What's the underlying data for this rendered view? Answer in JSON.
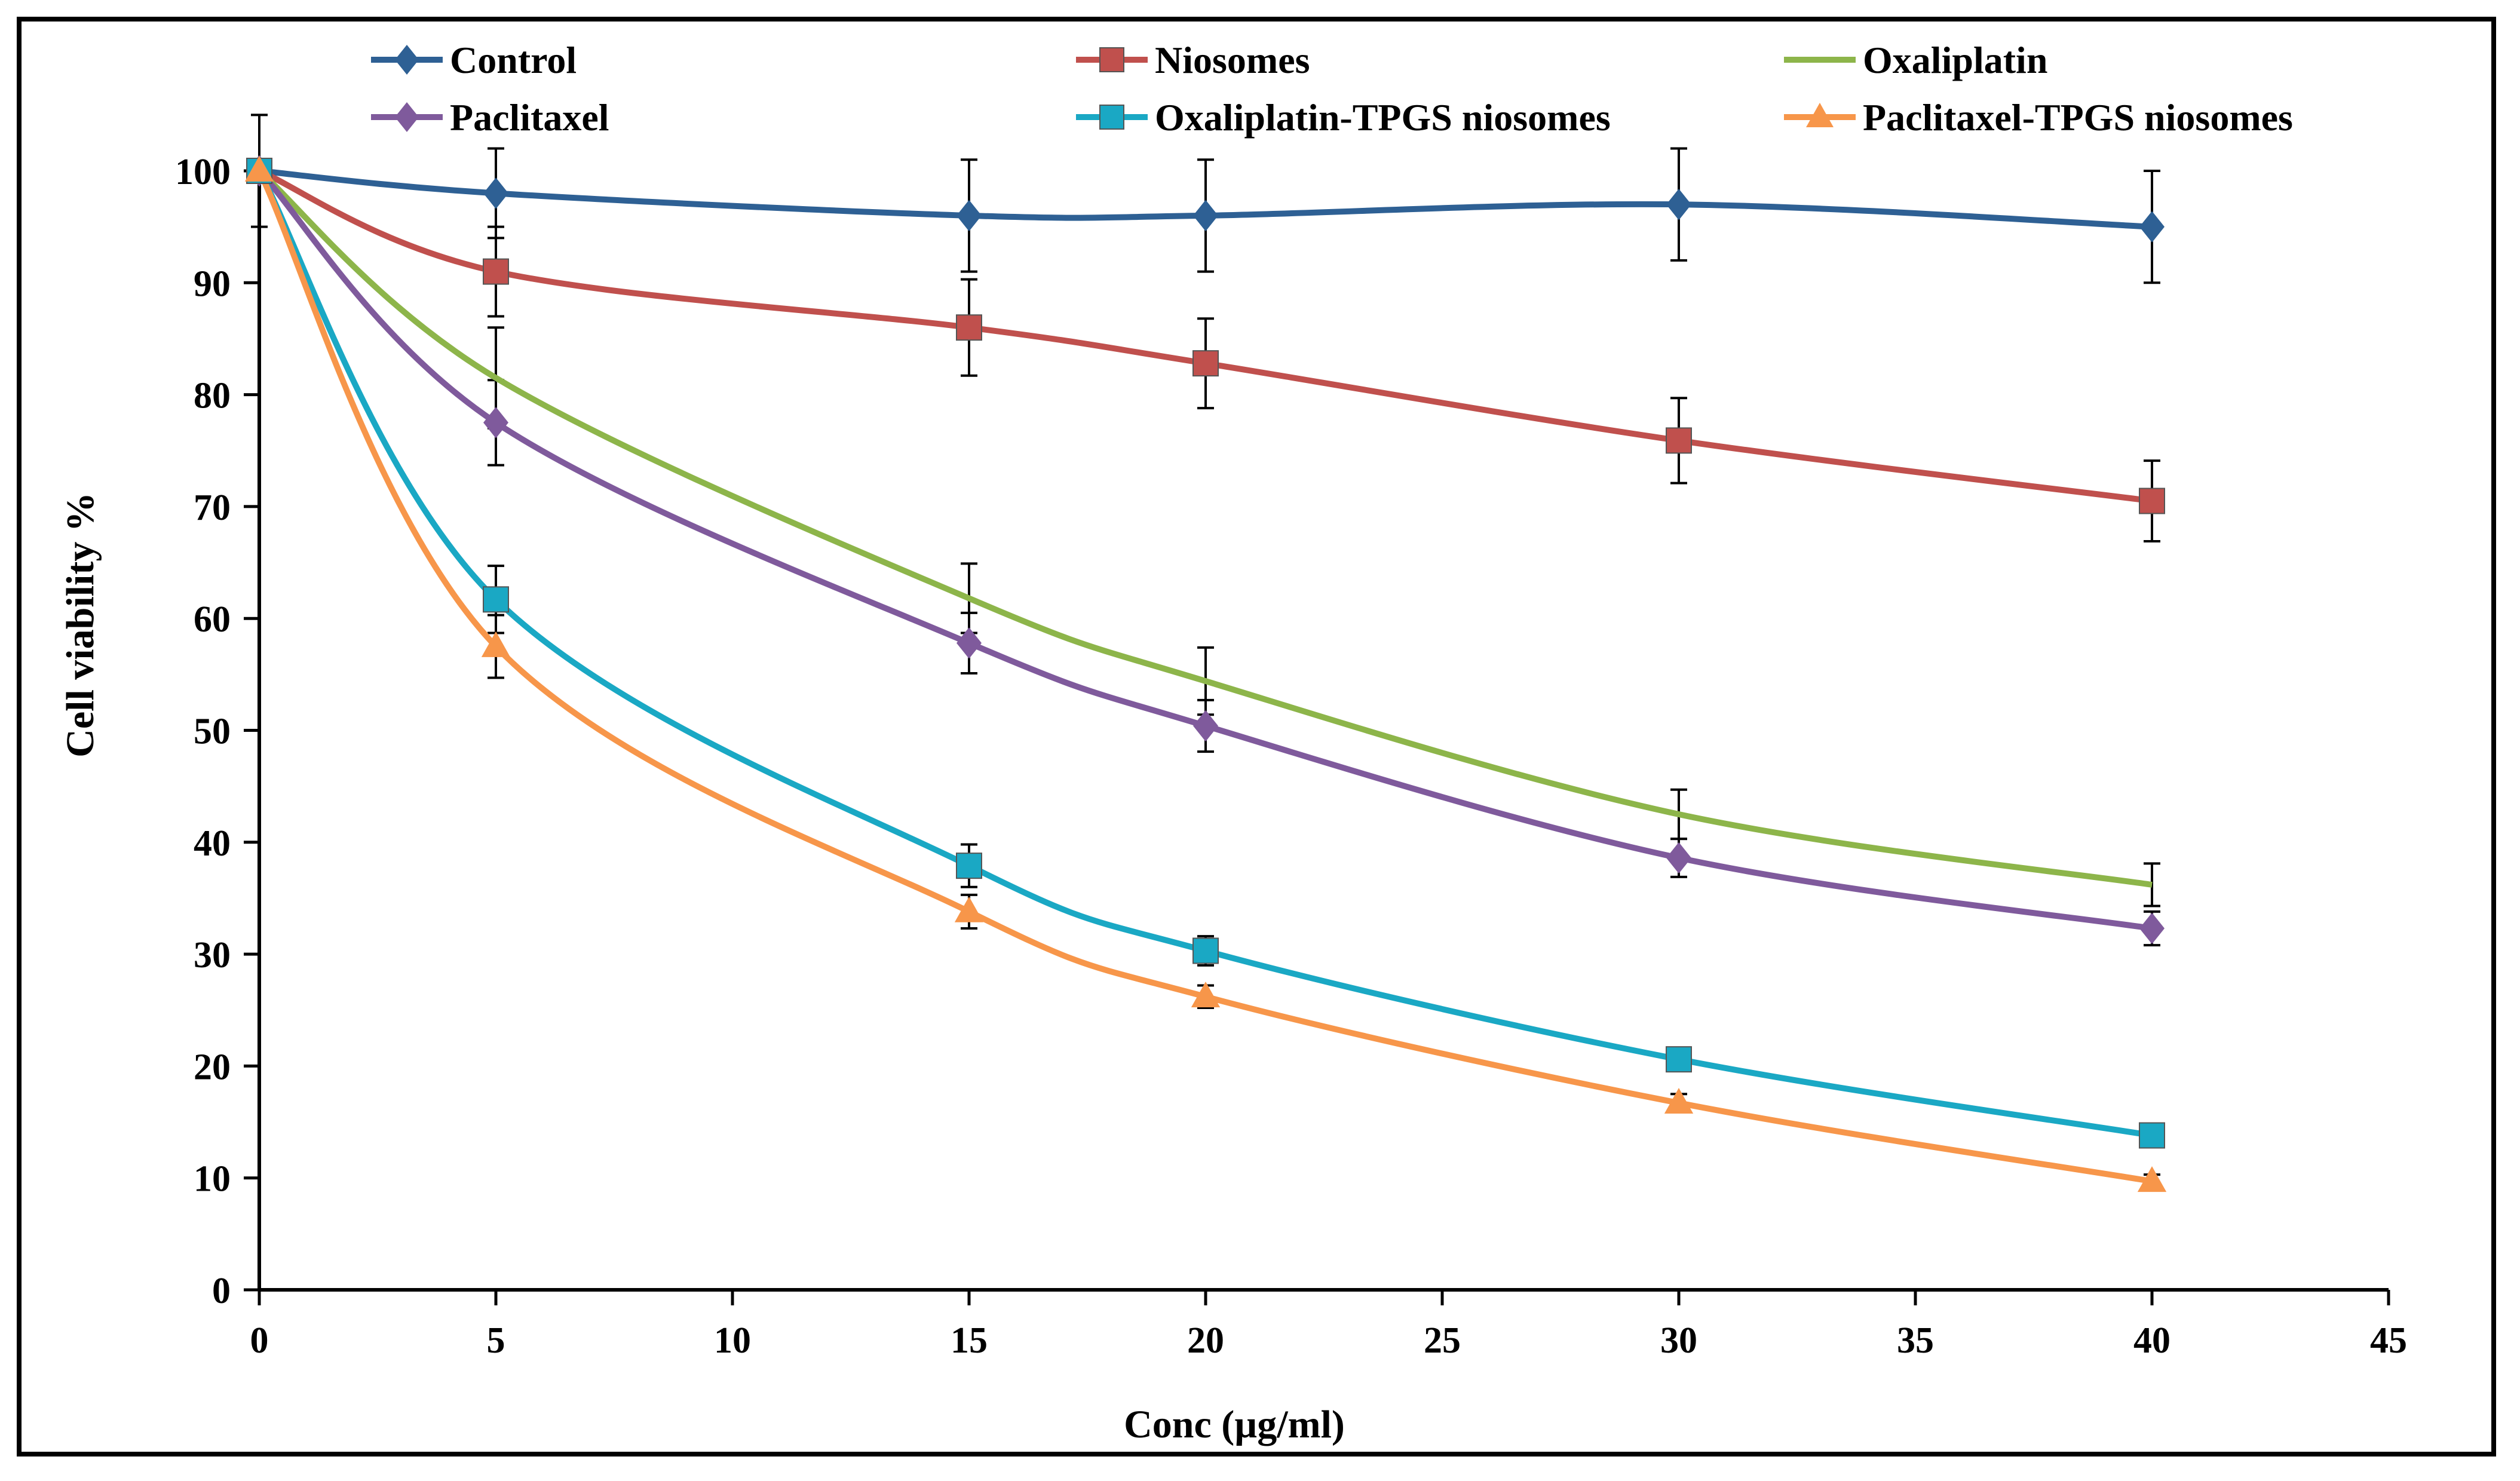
{
  "chart_data": {
    "type": "line",
    "xlabel": "Conc (µg/ml)",
    "ylabel": "Cell viability %",
    "xlim": [
      0,
      45
    ],
    "ylim": [
      0,
      100
    ],
    "xticks": [
      0,
      5,
      10,
      15,
      20,
      25,
      30,
      35,
      40,
      45
    ],
    "yticks": [
      0,
      10,
      20,
      30,
      40,
      50,
      60,
      70,
      80,
      90,
      100
    ],
    "grid": false,
    "legend_position": "top",
    "x": [
      0,
      5,
      15,
      20,
      30,
      40
    ],
    "series": [
      {
        "name": "Control",
        "color": "#2E6094",
        "marker": "diamond",
        "values": [
          100,
          98,
          96,
          96,
          97,
          95
        ],
        "errors": [
          5,
          4,
          5,
          5,
          5,
          5
        ]
      },
      {
        "name": "Niosomes",
        "color": "#C0504D",
        "marker": "square",
        "values": [
          100,
          91,
          86,
          82.8,
          75.9,
          70.5
        ],
        "errors": [
          0,
          4,
          4.3,
          4,
          3.8,
          3.6
        ]
      },
      {
        "name": "Oxaliplatin",
        "color": "#8DB54A",
        "marker": "none",
        "values": [
          100,
          81.5,
          61.8,
          54.4,
          42.5,
          36.2
        ],
        "errors": [
          0,
          4.5,
          3.1,
          3,
          2.2,
          1.9
        ]
      },
      {
        "name": "Paclitaxel",
        "color": "#7F5A9C",
        "marker": "diamond",
        "values": [
          100,
          77.5,
          57.8,
          50.4,
          38.6,
          32.3
        ],
        "errors": [
          0,
          3.8,
          2.7,
          2.3,
          1.7,
          1.5
        ]
      },
      {
        "name": "Oxaliplatin-TPGS niosomes",
        "color": "#1AA8C4",
        "marker": "square",
        "values": [
          100,
          61.7,
          37.9,
          30.3,
          20.6,
          13.8
        ],
        "errors": [
          0,
          3,
          1.9,
          1.3,
          0.8,
          0.5
        ]
      },
      {
        "name": "Paclitaxel-TPGS niosomes",
        "color": "#F7964A",
        "marker": "triangle",
        "values": [
          100,
          57.5,
          33.8,
          26.2,
          16.7,
          9.7
        ],
        "errors": [
          0,
          2.8,
          1.5,
          1,
          0.8,
          0.6
        ]
      }
    ]
  }
}
